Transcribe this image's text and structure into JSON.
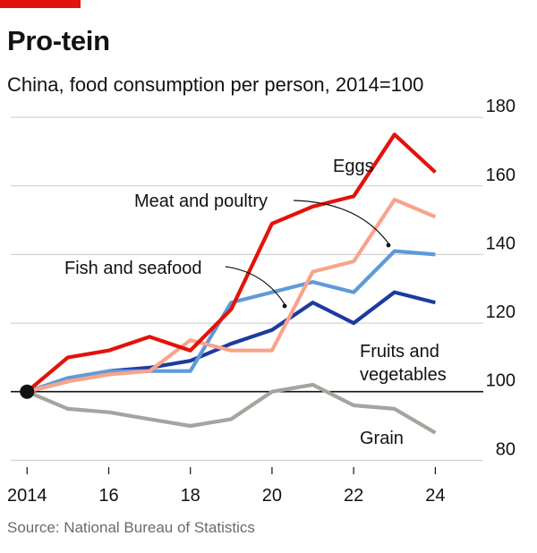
{
  "header": {
    "title": "Pro-tein",
    "subtitle": "China, food consumption per person, 2014=100",
    "accent_color": "#e3120b"
  },
  "footer": {
    "source": "Source: National Bureau of Statistics"
  },
  "chart_data": {
    "type": "line",
    "title": "Pro-tein",
    "subtitle": "China, food consumption per person, 2014=100",
    "xlabel": "",
    "ylabel": "",
    "x": [
      2014,
      2015,
      2016,
      2017,
      2018,
      2019,
      2020,
      2021,
      2022,
      2023,
      2024
    ],
    "x_tick_values": [
      2014,
      2016,
      2018,
      2020,
      2022,
      2024
    ],
    "x_tick_labels": [
      "2014",
      "16",
      "18",
      "20",
      "22",
      "24"
    ],
    "y_ticks": [
      80,
      100,
      120,
      140,
      160,
      180
    ],
    "ylim": [
      78,
      185
    ],
    "xlim": [
      2013.6,
      2025
    ],
    "grid": "horizontal",
    "baseline": 100,
    "legend": "direct labels",
    "series": [
      {
        "name": "Eggs",
        "color": "#e3120b",
        "values": [
          100,
          110,
          112,
          116,
          112,
          124,
          149,
          154,
          157,
          175,
          164
        ]
      },
      {
        "name": "Meat and poultry",
        "color": "#f8a48b",
        "values": [
          100,
          103,
          105,
          106,
          115,
          112,
          112,
          135,
          138,
          156,
          151
        ]
      },
      {
        "name": "Fish and seafood",
        "color": "#5f9ad8",
        "values": [
          100,
          104,
          106,
          106,
          106,
          126,
          129,
          132,
          129,
          141,
          140
        ]
      },
      {
        "name": "Fruits and vegetables",
        "color": "#1d3b9e",
        "values": [
          100,
          103,
          106,
          107,
          109,
          114,
          118,
          126,
          120,
          129,
          126
        ]
      },
      {
        "name": "Grain",
        "color": "#a4a59e",
        "values": [
          100,
          95,
          94,
          92,
          90,
          92,
          100,
          102,
          96,
          95,
          88
        ]
      }
    ]
  }
}
